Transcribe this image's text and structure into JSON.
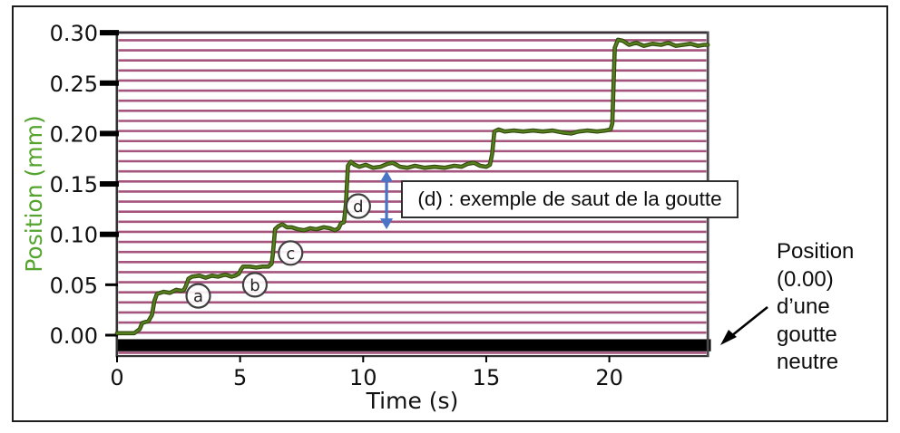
{
  "figure": {
    "background": "#ffffff",
    "border_color": "#1d1d1d"
  },
  "chart_data": {
    "type": "line",
    "title": "",
    "xlabel": "Time (s)",
    "ylabel": "Position (mm)",
    "xlim": [
      0,
      24
    ],
    "ylim": [
      -0.02,
      0.31
    ],
    "x_ticks": [
      0,
      5,
      10,
      15,
      20
    ],
    "y_ticks": [
      0.3,
      0.25,
      0.2,
      0.15,
      0.1,
      0.05,
      0.0
    ],
    "y_tick_labels": [
      "0.30",
      "0.25",
      "0.20",
      "0.15",
      "0.10",
      "0.05",
      "0.00"
    ],
    "grid": false,
    "colors": {
      "stripe": "#a5547e",
      "curve": "#567f1d",
      "curve_edge": "#31470e",
      "ylabel_green": "#55a42f",
      "jump_arrow_blue": "#4a74c6",
      "baseline_bar": "#000000",
      "axis": "#333333",
      "tick_text": "#111111"
    },
    "background_stripes": {
      "description": "horizontal electrode stripes",
      "first_y_mm": 0.2925,
      "pitch_mm": 0.01,
      "count": 32
    },
    "baseline_bar": {
      "from_mm": -0.004,
      "to_mm": -0.016,
      "meaning": "position (0.00) of a neutral droplet"
    },
    "series": [
      {
        "name": "droplet position",
        "points": [
          [
            0,
            0.002
          ],
          [
            0.7,
            0.002
          ],
          [
            0.92,
            0.006
          ],
          [
            1.02,
            0.012
          ],
          [
            1.28,
            0.014
          ],
          [
            1.42,
            0.02
          ],
          [
            1.52,
            0.034
          ],
          [
            1.62,
            0.041
          ],
          [
            1.9,
            0.043
          ],
          [
            2.15,
            0.042
          ],
          [
            2.4,
            0.045
          ],
          [
            2.6,
            0.044
          ],
          [
            2.72,
            0.045
          ],
          [
            2.8,
            0.049
          ],
          [
            2.9,
            0.056
          ],
          [
            3.05,
            0.058
          ],
          [
            3.35,
            0.059
          ],
          [
            3.6,
            0.057
          ],
          [
            3.85,
            0.059
          ],
          [
            4.1,
            0.058
          ],
          [
            4.4,
            0.06
          ],
          [
            4.65,
            0.058
          ],
          [
            4.8,
            0.059
          ],
          [
            4.95,
            0.061
          ],
          [
            5.03,
            0.065
          ],
          [
            5.12,
            0.068
          ],
          [
            5.4,
            0.068
          ],
          [
            5.65,
            0.067
          ],
          [
            5.9,
            0.068
          ],
          [
            6.15,
            0.068
          ],
          [
            6.28,
            0.071
          ],
          [
            6.33,
            0.08
          ],
          [
            6.42,
            0.105
          ],
          [
            6.55,
            0.108
          ],
          [
            6.72,
            0.11
          ],
          [
            6.9,
            0.107
          ],
          [
            7.1,
            0.107
          ],
          [
            7.35,
            0.105
          ],
          [
            7.6,
            0.104
          ],
          [
            7.85,
            0.106
          ],
          [
            8.1,
            0.105
          ],
          [
            8.4,
            0.107
          ],
          [
            8.65,
            0.106
          ],
          [
            8.85,
            0.104
          ],
          [
            9.0,
            0.106
          ],
          [
            9.1,
            0.111
          ],
          [
            9.22,
            0.112
          ],
          [
            9.3,
            0.13
          ],
          [
            9.38,
            0.168
          ],
          [
            9.5,
            0.172
          ],
          [
            9.65,
            0.169
          ],
          [
            9.85,
            0.167
          ],
          [
            10.1,
            0.169
          ],
          [
            10.4,
            0.166
          ],
          [
            10.7,
            0.167
          ],
          [
            11.0,
            0.17
          ],
          [
            11.2,
            0.171
          ],
          [
            11.5,
            0.167
          ],
          [
            11.8,
            0.166
          ],
          [
            12.1,
            0.168
          ],
          [
            12.5,
            0.166
          ],
          [
            12.9,
            0.167
          ],
          [
            13.3,
            0.166
          ],
          [
            13.7,
            0.168
          ],
          [
            14.0,
            0.167
          ],
          [
            14.25,
            0.17
          ],
          [
            14.5,
            0.171
          ],
          [
            14.75,
            0.168
          ],
          [
            15.0,
            0.167
          ],
          [
            15.15,
            0.169
          ],
          [
            15.24,
            0.18
          ],
          [
            15.33,
            0.202
          ],
          [
            15.5,
            0.204
          ],
          [
            15.75,
            0.202
          ],
          [
            16.1,
            0.203
          ],
          [
            16.5,
            0.202
          ],
          [
            16.9,
            0.203
          ],
          [
            17.3,
            0.202
          ],
          [
            17.7,
            0.203
          ],
          [
            18.1,
            0.201
          ],
          [
            18.45,
            0.2
          ],
          [
            18.75,
            0.202
          ],
          [
            19.1,
            0.203
          ],
          [
            19.5,
            0.202
          ],
          [
            19.85,
            0.203
          ],
          [
            20.05,
            0.204
          ],
          [
            20.12,
            0.21
          ],
          [
            20.22,
            0.285
          ],
          [
            20.35,
            0.293
          ],
          [
            20.55,
            0.292
          ],
          [
            20.8,
            0.288
          ],
          [
            21.1,
            0.29
          ],
          [
            21.4,
            0.287
          ],
          [
            21.75,
            0.289
          ],
          [
            22.1,
            0.288
          ],
          [
            22.4,
            0.29
          ],
          [
            22.7,
            0.287
          ],
          [
            23.0,
            0.288
          ],
          [
            23.3,
            0.289
          ],
          [
            23.6,
            0.287
          ],
          [
            23.85,
            0.288
          ],
          [
            24,
            0.288
          ]
        ]
      }
    ],
    "annotations": [
      {
        "label": "a",
        "t": 3.3,
        "mm": 0.039
      },
      {
        "label": "b",
        "t": 5.6,
        "mm": 0.05
      },
      {
        "label": "c",
        "t": 7.05,
        "mm": 0.0815
      },
      {
        "label": "d",
        "t": 9.8,
        "mm": 0.128
      }
    ],
    "jump_arrow": {
      "t": 10.95,
      "from_mm": 0.105,
      "to_mm": 0.163
    }
  },
  "callout_box": {
    "text": "(d) : exemple de saut de la goutte"
  },
  "side_note": {
    "text": "Position\n(0.00)\nd’une\ngoutte\nneutre"
  }
}
